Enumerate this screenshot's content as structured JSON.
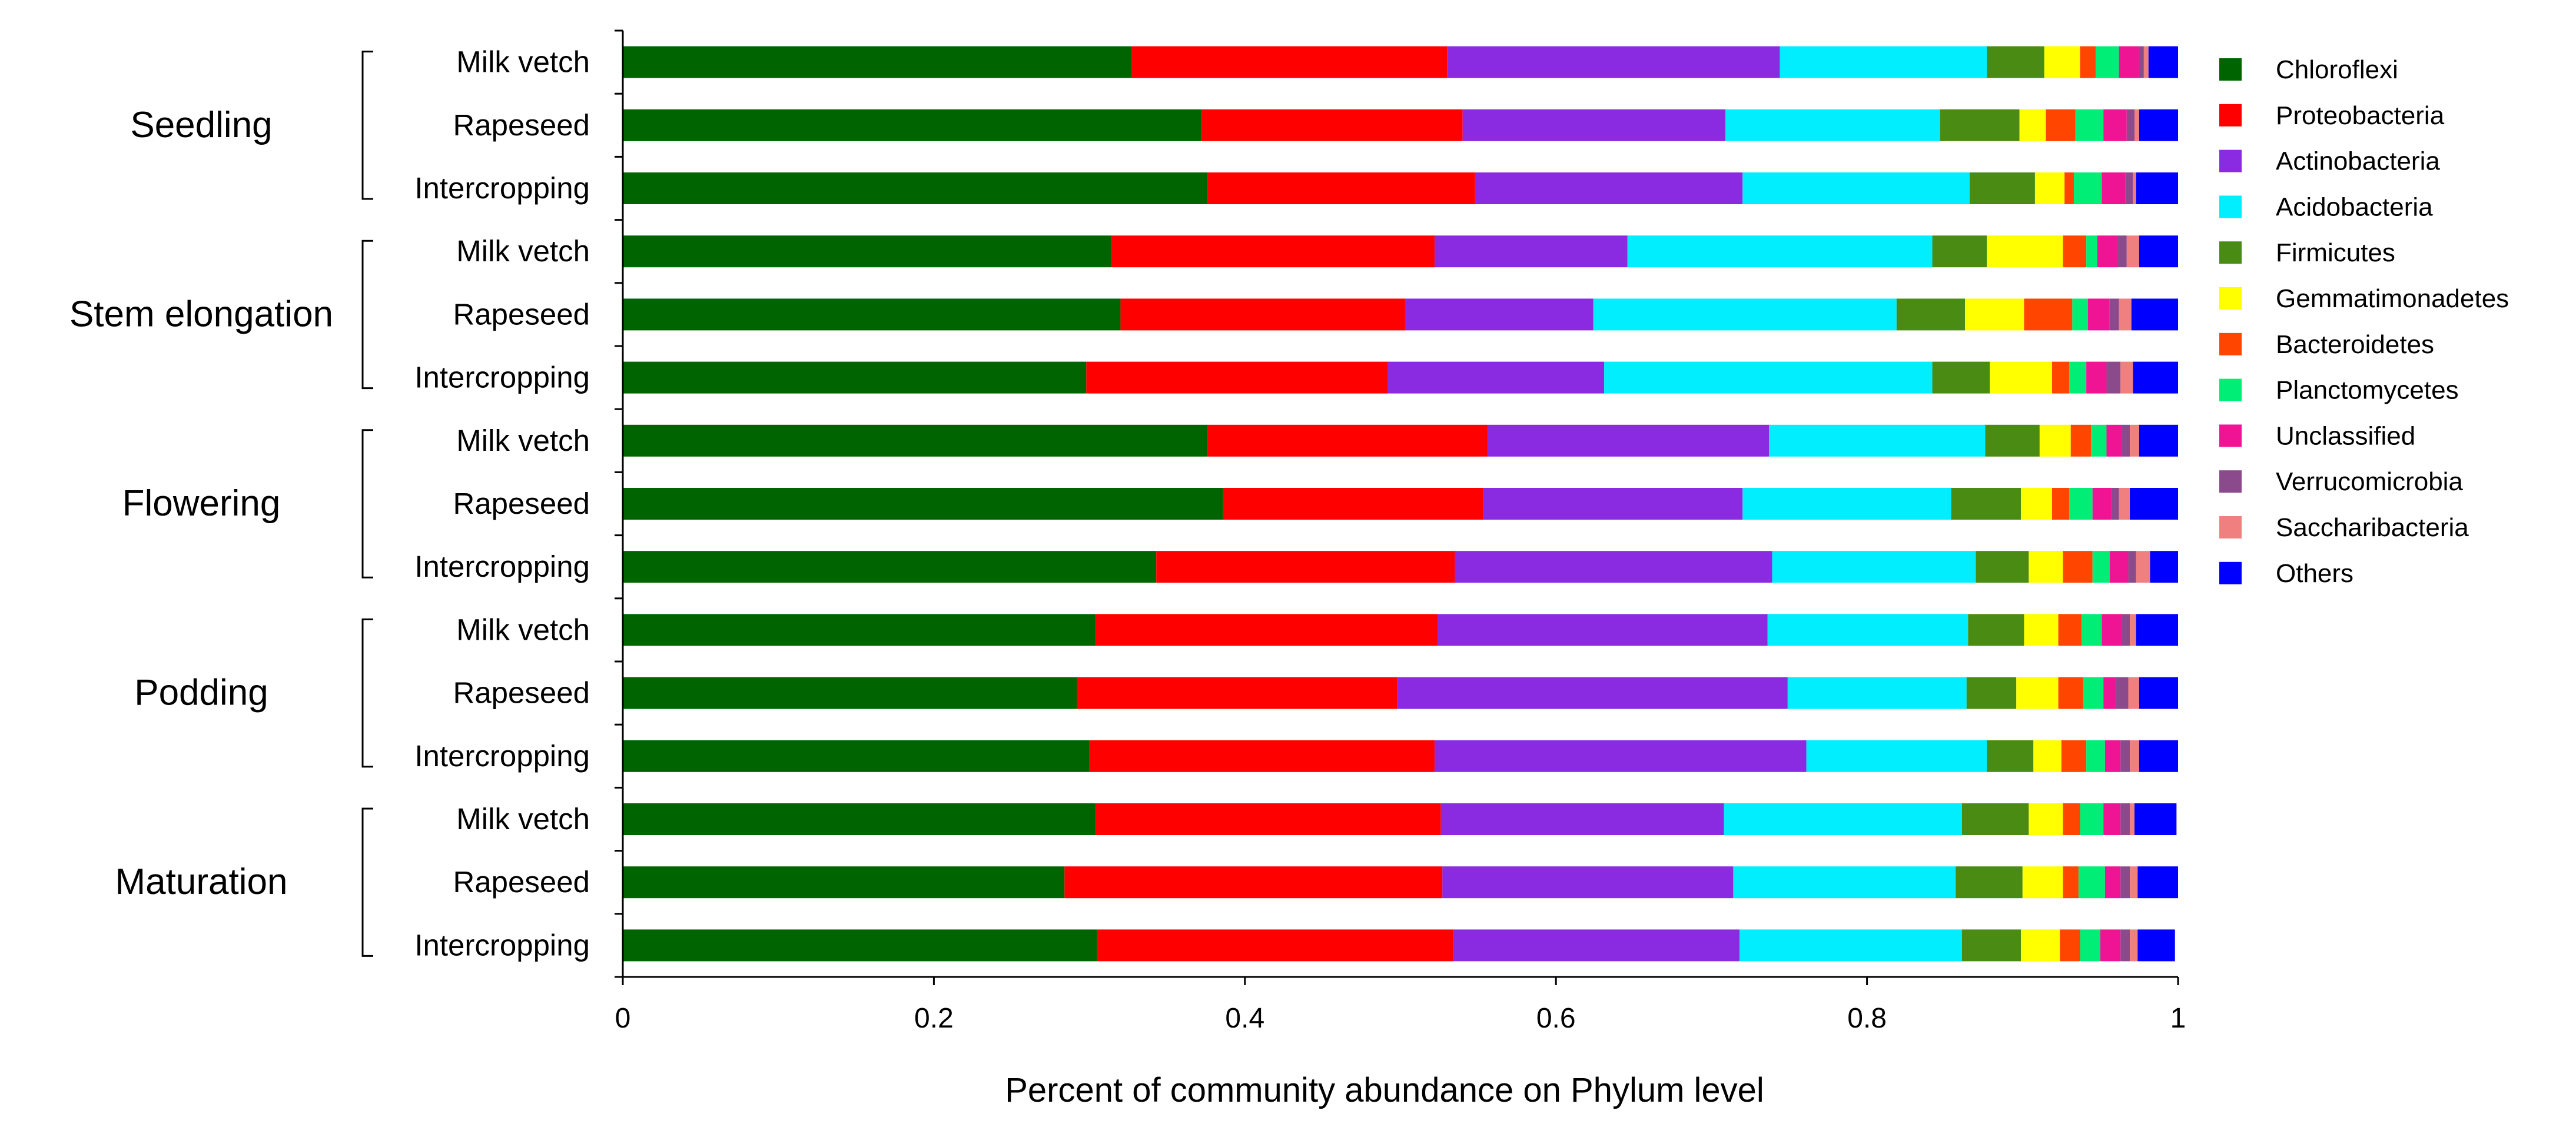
{
  "chart_data": {
    "type": "bar",
    "orientation": "horizontal",
    "stacked": true,
    "xlabel": "Percent of community abundance on Phylum level",
    "xlim": [
      0,
      1
    ],
    "xticks": [
      0,
      0.2,
      0.4,
      0.6,
      0.8,
      1
    ],
    "xtick_labels": [
      "0",
      "0.2",
      "0.4",
      "0.6",
      "0.8",
      "1"
    ],
    "legend_position": "right",
    "groups": [
      {
        "label": "Seedling",
        "categories": [
          "Milk vetch",
          "Rapeseed",
          "Intercropping"
        ]
      },
      {
        "label": "Stem elongation",
        "categories": [
          "Milk vetch",
          "Rapeseed",
          "Intercropping"
        ]
      },
      {
        "label": "Flowering",
        "categories": [
          "Milk vetch",
          "Rapeseed",
          "Intercropping"
        ]
      },
      {
        "label": "Podding",
        "categories": [
          "Milk vetch",
          "Rapeseed",
          "Intercropping"
        ]
      },
      {
        "label": "Maturation",
        "categories": [
          "Milk vetch",
          "Rapeseed",
          "Intercropping"
        ]
      }
    ],
    "series": [
      {
        "name": "Chloroflexi",
        "color": "#006400",
        "values": [
          0.327,
          0.372,
          0.376,
          0.314,
          0.32,
          0.298,
          0.376,
          0.386,
          0.343,
          0.304,
          0.292,
          0.3,
          0.304,
          0.284,
          0.305
        ]
      },
      {
        "name": "Proteobacteria",
        "color": "#FF0000",
        "values": [
          0.203,
          0.168,
          0.172,
          0.208,
          0.183,
          0.194,
          0.18,
          0.167,
          0.192,
          0.22,
          0.206,
          0.222,
          0.222,
          0.243,
          0.229
        ]
      },
      {
        "name": "Actinobacteria",
        "color": "#8A2BE2",
        "values": [
          0.214,
          0.169,
          0.172,
          0.124,
          0.121,
          0.139,
          0.181,
          0.167,
          0.204,
          0.212,
          0.251,
          0.239,
          0.182,
          0.187,
          0.184
        ]
      },
      {
        "name": "Acidobacteria",
        "color": "#00EEFF",
        "values": [
          0.133,
          0.138,
          0.146,
          0.196,
          0.195,
          0.211,
          0.139,
          0.134,
          0.131,
          0.129,
          0.115,
          0.116,
          0.153,
          0.143,
          0.143
        ]
      },
      {
        "name": "Firmicutes",
        "color": "#4A8B14",
        "values": [
          0.037,
          0.051,
          0.042,
          0.035,
          0.044,
          0.037,
          0.035,
          0.045,
          0.034,
          0.036,
          0.032,
          0.03,
          0.043,
          0.043,
          0.038
        ]
      },
      {
        "name": "Gemmatimonadetes",
        "color": "#FFFF00",
        "values": [
          0.023,
          0.017,
          0.019,
          0.049,
          0.038,
          0.04,
          0.02,
          0.02,
          0.022,
          0.022,
          0.027,
          0.018,
          0.022,
          0.026,
          0.025
        ]
      },
      {
        "name": "Bacteroidetes",
        "color": "#FF4500",
        "values": [
          0.01,
          0.019,
          0.006,
          0.015,
          0.031,
          0.011,
          0.013,
          0.011,
          0.019,
          0.015,
          0.016,
          0.016,
          0.011,
          0.01,
          0.013
        ]
      },
      {
        "name": "Planctomycetes",
        "color": "#00EE76",
        "values": [
          0.015,
          0.018,
          0.018,
          0.007,
          0.01,
          0.011,
          0.01,
          0.015,
          0.011,
          0.013,
          0.013,
          0.012,
          0.015,
          0.017,
          0.013
        ]
      },
      {
        "name": "Unclassified",
        "color": "#EE1493",
        "values": [
          0.013,
          0.015,
          0.015,
          0.013,
          0.014,
          0.013,
          0.01,
          0.012,
          0.012,
          0.013,
          0.008,
          0.01,
          0.011,
          0.01,
          0.013
        ]
      },
      {
        "name": "Verrucomicrobia",
        "color": "#8B4A8B",
        "values": [
          0.003,
          0.005,
          0.005,
          0.006,
          0.006,
          0.009,
          0.005,
          0.005,
          0.005,
          0.005,
          0.008,
          0.006,
          0.006,
          0.006,
          0.006
        ]
      },
      {
        "name": "Saccharibacteria",
        "color": "#F08080",
        "values": [
          0.003,
          0.003,
          0.002,
          0.008,
          0.008,
          0.008,
          0.006,
          0.007,
          0.009,
          0.004,
          0.007,
          0.006,
          0.003,
          0.005,
          0.005
        ]
      },
      {
        "name": "Others",
        "color": "#0000FF",
        "values": [
          0.019,
          0.025,
          0.027,
          0.025,
          0.03,
          0.029,
          0.025,
          0.031,
          0.018,
          0.027,
          0.025,
          0.025,
          0.027,
          0.026,
          0.024
        ]
      }
    ]
  }
}
